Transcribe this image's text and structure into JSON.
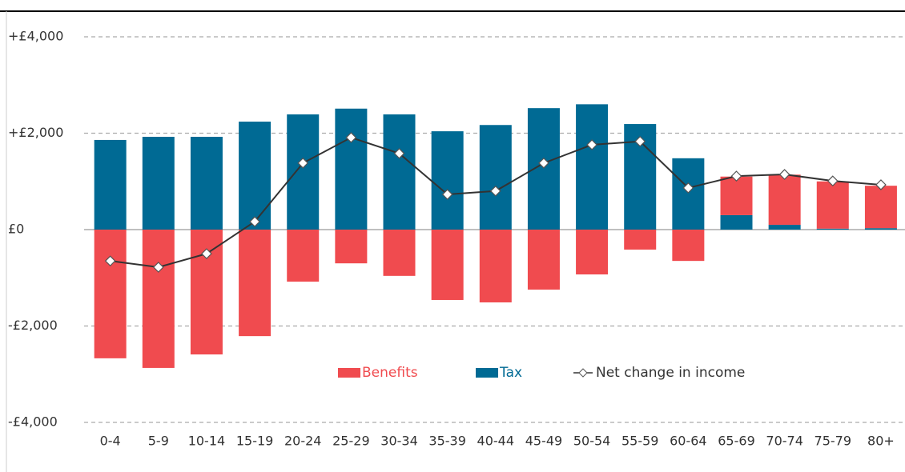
{
  "chart_data": {
    "type": "bar",
    "categories": [
      "0-4",
      "5-9",
      "10-14",
      "15-19",
      "20-24",
      "25-29",
      "30-34",
      "35-39",
      "40-44",
      "45-49",
      "50-54",
      "55-59",
      "60-64",
      "65-69",
      "70-74",
      "75-79",
      "80+"
    ],
    "series": [
      {
        "name": "Benefits",
        "color": "#f04b4f",
        "values": [
          -2670,
          -2870,
          -2590,
          -2210,
          -1080,
          -700,
          -960,
          -1460,
          -1510,
          -1245,
          -930,
          -415,
          -650,
          800,
          1040,
          980,
          880
        ]
      },
      {
        "name": "Tax",
        "color": "#006a94",
        "values": [
          1860,
          1925,
          1925,
          2240,
          2390,
          2510,
          2390,
          2040,
          2170,
          2520,
          2600,
          2190,
          1480,
          300,
          100,
          20,
          30
        ]
      },
      {
        "name": "Net change in income",
        "type": "line",
        "color": "#333333",
        "values": [
          -650,
          -780,
          -500,
          165,
          1380,
          1910,
          1580,
          730,
          800,
          1380,
          1760,
          1830,
          865,
          1110,
          1145,
          1010,
          930
        ]
      }
    ],
    "ylim": [
      -4000,
      4000
    ],
    "yticks": [
      {
        "value": -4000,
        "label": "-£4,000"
      },
      {
        "value": -2000,
        "label": "-£2,000"
      },
      {
        "value": 0,
        "label": "£0"
      },
      {
        "value": 2000,
        "label": "+£2,000"
      },
      {
        "value": 4000,
        "label": "+£4,000"
      }
    ],
    "grid": true,
    "stacked": true
  }
}
